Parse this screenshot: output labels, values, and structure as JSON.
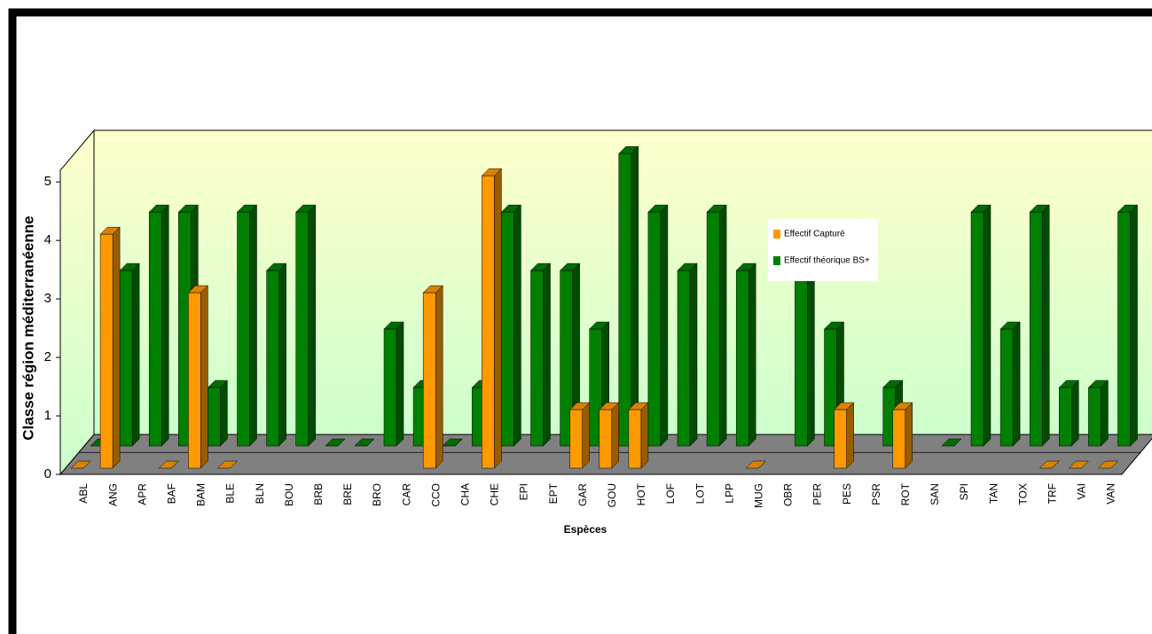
{
  "chart_data": {
    "type": "bar3d",
    "y_label": "Classe région méditerranéenne",
    "x_label": "Espèces",
    "categories": [
      "ABL",
      "ANG",
      "APR",
      "BAF",
      "BAM",
      "BLE",
      "BLN",
      "BOU",
      "BRB",
      "BRE",
      "BRO",
      "CAR",
      "CCO",
      "CHA",
      "CHE",
      "EPI",
      "EPT",
      "GAR",
      "GOU",
      "HOT",
      "LOF",
      "LOT",
      "LPP",
      "MUG",
      "OBR",
      "PER",
      "PES",
      "PSR",
      "ROT",
      "SAN",
      "SPI",
      "TAN",
      "TOX",
      "TRF",
      "VAI",
      "VAN"
    ],
    "series": [
      {
        "name": "Effectif Capturé",
        "color": "#ff9900",
        "values": [
          0,
          4,
          null,
          0,
          3,
          0,
          null,
          null,
          null,
          null,
          null,
          null,
          3,
          null,
          5,
          null,
          null,
          1,
          1,
          1,
          null,
          null,
          null,
          0,
          null,
          null,
          1,
          null,
          1,
          null,
          null,
          null,
          null,
          0,
          0,
          0
        ]
      },
      {
        "name": "Effectif théorique BS+",
        "color": "#008000",
        "values": [
          0,
          3,
          4,
          4,
          1,
          4,
          3,
          4,
          0,
          0,
          2,
          1,
          0,
          1,
          4,
          3,
          3,
          2,
          5,
          4,
          3,
          4,
          3,
          null,
          3,
          2,
          null,
          1,
          null,
          0,
          4,
          2,
          4,
          1,
          1,
          4
        ]
      }
    ],
    "ylim": [
      0,
      5.2
    ],
    "yticks": [
      0,
      1,
      2,
      3,
      4,
      5
    ]
  }
}
